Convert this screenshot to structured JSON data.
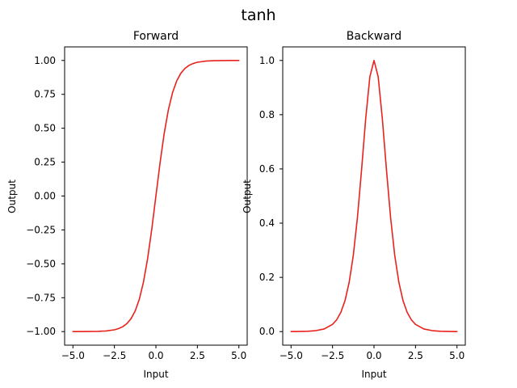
{
  "figure": {
    "suptitle": "tanh",
    "line_color": "#e8221c",
    "axes_color": "#000000",
    "background": "#ffffff"
  },
  "chart_data": [
    {
      "type": "line",
      "title": "Forward",
      "xlabel": "Input",
      "ylabel": "Output",
      "xlim": [
        -5.5,
        5.5
      ],
      "ylim": [
        -1.1,
        1.1
      ],
      "xticks": [
        -5.0,
        -2.5,
        0.0,
        2.5,
        5.0
      ],
      "xtick_labels": [
        "−5.0",
        "−2.5",
        "0.0",
        "2.5",
        "5.0"
      ],
      "yticks": [
        -1.0,
        -0.75,
        -0.5,
        -0.25,
        0.0,
        0.25,
        0.5,
        0.75,
        1.0
      ],
      "ytick_labels": [
        "−1.00",
        "−0.75",
        "−0.50",
        "−0.25",
        "0.00",
        "0.25",
        "0.50",
        "0.75",
        "1.00"
      ],
      "grid": false,
      "series": [
        {
          "x": [
            -5.0,
            -4.5,
            -4.0,
            -3.5,
            -3.0,
            -2.5,
            -2.25,
            -2.0,
            -1.75,
            -1.5,
            -1.25,
            -1.0,
            -0.75,
            -0.5,
            -0.25,
            0.0,
            0.25,
            0.5,
            0.75,
            1.0,
            1.25,
            1.5,
            1.75,
            2.0,
            2.25,
            2.5,
            3.0,
            3.5,
            4.0,
            4.5,
            5.0
          ],
          "values": [
            -0.9999,
            -0.9998,
            -0.9993,
            -0.9982,
            -0.9951,
            -0.9866,
            -0.978,
            -0.964,
            -0.9414,
            -0.9051,
            -0.8483,
            -0.7616,
            -0.6351,
            -0.4621,
            -0.2449,
            0.0,
            0.2449,
            0.4621,
            0.6351,
            0.7616,
            0.8483,
            0.9051,
            0.9414,
            0.964,
            0.978,
            0.9866,
            0.9951,
            0.9982,
            0.9993,
            0.9998,
            0.9999
          ]
        }
      ]
    },
    {
      "type": "line",
      "title": "Backward",
      "xlabel": "Input",
      "ylabel": "Output",
      "xlim": [
        -5.5,
        5.5
      ],
      "ylim": [
        -0.05,
        1.05
      ],
      "xticks": [
        -5.0,
        -2.5,
        0.0,
        2.5,
        5.0
      ],
      "xtick_labels": [
        "−5.0",
        "−2.5",
        "0.0",
        "2.5",
        "5.0"
      ],
      "yticks": [
        0.0,
        0.2,
        0.4,
        0.6,
        0.8,
        1.0
      ],
      "ytick_labels": [
        "0.0",
        "0.2",
        "0.4",
        "0.6",
        "0.8",
        "1.0"
      ],
      "grid": false,
      "series": [
        {
          "x": [
            -5.0,
            -4.5,
            -4.0,
            -3.5,
            -3.0,
            -2.5,
            -2.25,
            -2.0,
            -1.75,
            -1.5,
            -1.25,
            -1.0,
            -0.75,
            -0.5,
            -0.25,
            0.0,
            0.25,
            0.5,
            0.75,
            1.0,
            1.25,
            1.5,
            1.75,
            2.0,
            2.25,
            2.5,
            3.0,
            3.5,
            4.0,
            4.5,
            5.0
          ],
          "values": [
            0.0002,
            0.0005,
            0.0013,
            0.0036,
            0.0099,
            0.0266,
            0.0435,
            0.0707,
            0.1138,
            0.1807,
            0.2804,
            0.42,
            0.5966,
            0.7864,
            0.94,
            1.0,
            0.94,
            0.7864,
            0.5966,
            0.42,
            0.2804,
            0.1807,
            0.1138,
            0.0707,
            0.0435,
            0.0266,
            0.0099,
            0.0036,
            0.0013,
            0.0005,
            0.0002
          ]
        }
      ]
    }
  ]
}
